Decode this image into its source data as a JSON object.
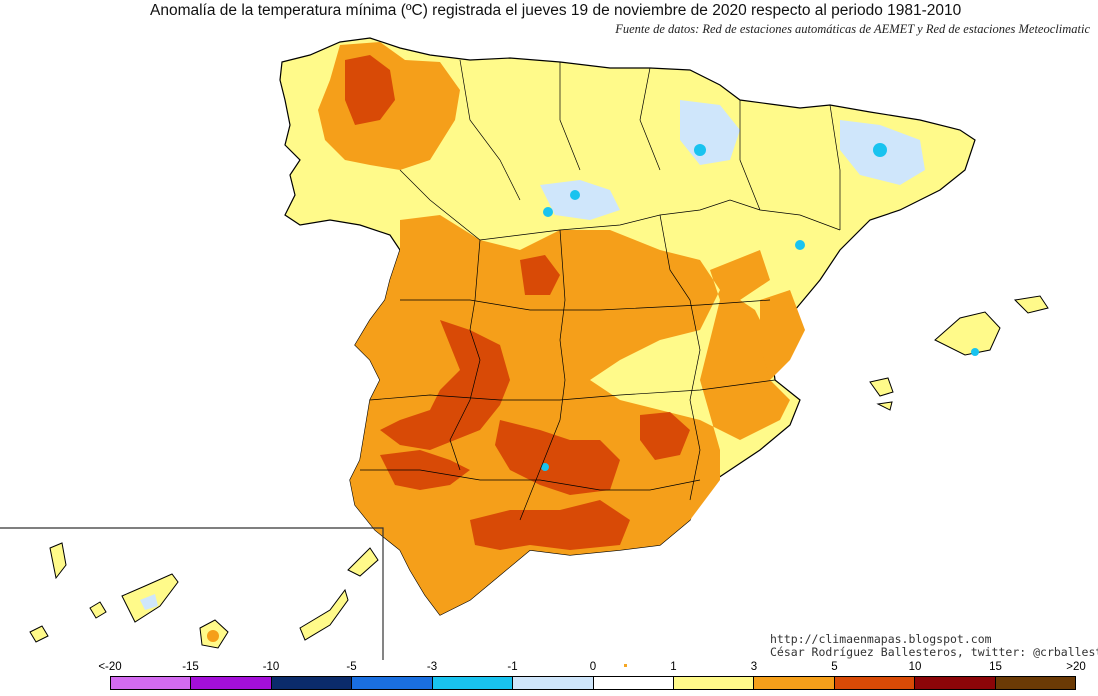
{
  "title": "Anomalía de la temperatura mínima (ºC) registrada el jueves 19 de noviembre de 2020 respecto al periodo 1981-2010",
  "source": "Fuente de datos: Red de estaciones automáticas de AEMET y Red de estaciones Meteoclimatic",
  "credit": {
    "url": "http://climaenmapas.blogspot.com",
    "author": "César Rodríguez Ballesteros, twitter: @crballesteros"
  },
  "legend": {
    "ticks": [
      "<-20",
      "-15",
      "-10",
      "-5",
      "-3",
      "-1",
      "0",
      "1",
      "3",
      "5",
      "10",
      "15",
      ">20"
    ],
    "colors": [
      "#d36bf0",
      "#a40fd9",
      "#0b2b6b",
      "#1a6fe0",
      "#19c3ef",
      "#cfe6fb",
      "#ffffff",
      "#fffa8a",
      "#f59f1a",
      "#d84a06",
      "#8c0508",
      "#6b3a05"
    ]
  },
  "map_colors": {
    "background": "#ffffff",
    "border": "#000000",
    "warm_light": "#fffa8a",
    "warm_mid": "#f59f1a",
    "warm_strong": "#d84a06",
    "cool_light": "#cfe6fb",
    "cool_mid": "#19c3ef"
  }
}
